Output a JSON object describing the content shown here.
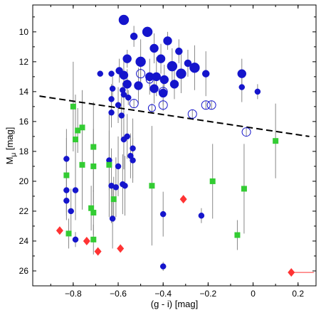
{
  "chart_data": {
    "type": "scatter",
    "title": "",
    "xlabel": "(g - i) [mag]",
    "ylabel": "M",
    "ylabel_subscript": "μ",
    "ylabel_suffix": " [mag]",
    "xlim": [
      -0.98,
      0.28
    ],
    "ylim": [
      27.0,
      8.2
    ],
    "y_inverted": true,
    "grid": false,
    "x_ticks": [
      -0.8,
      -0.6,
      -0.4,
      -0.2,
      0,
      0.2
    ],
    "x_tick_labels": [
      "−0.8",
      "−0.6",
      "−0.4",
      "−0.2",
      "0",
      "0.2"
    ],
    "y_ticks": [
      10,
      12,
      14,
      16,
      18,
      20,
      22,
      24,
      26
    ],
    "y_tick_labels": [
      "10",
      "12",
      "14",
      "16",
      "18",
      "20",
      "22",
      "24",
      "26"
    ],
    "colors": {
      "blue": "#1515cc",
      "green": "#33cc33",
      "red": "#ff3333",
      "errorbar": "#888888",
      "dashed_line": "#000000"
    },
    "dashed_line": {
      "x": [
        -0.95,
        0.25
      ],
      "y": [
        14.3,
        17.0
      ]
    },
    "series": [
      {
        "marker": "circle-filled",
        "color": "blue",
        "points": [
          {
            "x": -0.575,
            "y": 9.2,
            "size": 7,
            "err": 0
          },
          {
            "x": -0.53,
            "y": 10.3,
            "size": 5,
            "err": 0.7
          },
          {
            "x": -0.47,
            "y": 10.0,
            "size": 7,
            "err": 0
          },
          {
            "x": -0.44,
            "y": 11.1,
            "size": 6,
            "err": 1.0
          },
          {
            "x": -0.38,
            "y": 10.6,
            "size": 6,
            "err": 0.6
          },
          {
            "x": -0.33,
            "y": 11.3,
            "size": 5,
            "err": 0.8
          },
          {
            "x": -0.56,
            "y": 11.8,
            "size": 6,
            "err": 0.6
          },
          {
            "x": -0.5,
            "y": 12.0,
            "size": 7,
            "err": 1.5
          },
          {
            "x": -0.41,
            "y": 11.8,
            "size": 6,
            "err": 1.0
          },
          {
            "x": -0.36,
            "y": 12.3,
            "size": 7,
            "err": 1.2
          },
          {
            "x": -0.32,
            "y": 12.8,
            "size": 7,
            "err": 1.3
          },
          {
            "x": -0.29,
            "y": 12.1,
            "size": 5,
            "err": 0.9
          },
          {
            "x": -0.26,
            "y": 12.4,
            "size": 7,
            "err": 1.5
          },
          {
            "x": -0.21,
            "y": 12.8,
            "size": 5,
            "err": 1.5
          },
          {
            "x": -0.595,
            "y": 12.6,
            "size": 5,
            "err": 0.8
          },
          {
            "x": -0.575,
            "y": 12.9,
            "size": 6,
            "err": 1.0
          },
          {
            "x": -0.46,
            "y": 13.0,
            "size": 6,
            "err": 1.2
          },
          {
            "x": -0.43,
            "y": 13.0,
            "size": 6,
            "err": 1.3
          },
          {
            "x": -0.395,
            "y": 13.2,
            "size": 6,
            "err": 1.0
          },
          {
            "x": -0.35,
            "y": 13.5,
            "size": 6,
            "err": 1.0
          },
          {
            "x": -0.56,
            "y": 13.5,
            "size": 6,
            "err": 1.0
          },
          {
            "x": -0.51,
            "y": 13.6,
            "size": 6,
            "err": 1.2
          },
          {
            "x": -0.44,
            "y": 13.8,
            "size": 6,
            "err": 1.0
          },
          {
            "x": -0.4,
            "y": 14.1,
            "size": 6,
            "err": 0.8
          },
          {
            "x": -0.05,
            "y": 12.8,
            "size": 6,
            "err": 1.0
          },
          {
            "x": -0.05,
            "y": 13.7,
            "size": 4,
            "err": 1.0
          },
          {
            "x": 0.02,
            "y": 14.0,
            "size": 4,
            "err": 0.5
          },
          {
            "x": -0.63,
            "y": 12.8,
            "size": 4,
            "err": 0
          },
          {
            "x": -0.68,
            "y": 12.8,
            "size": 4,
            "err": 0
          },
          {
            "x": -0.58,
            "y": 13.9,
            "size": 4,
            "err": 0.5
          },
          {
            "x": -0.625,
            "y": 13.8,
            "size": 4,
            "err": 0.8
          },
          {
            "x": -0.63,
            "y": 14.5,
            "size": 4,
            "err": 1.0
          },
          {
            "x": -0.575,
            "y": 14.2,
            "size": 4,
            "err": 1.0
          },
          {
            "x": -0.555,
            "y": 14.4,
            "size": 4,
            "err": 0.5
          },
          {
            "x": -0.63,
            "y": 15.4,
            "size": 4,
            "err": 1.0
          },
          {
            "x": -0.6,
            "y": 14.9,
            "size": 4,
            "err": 1.2
          },
          {
            "x": -0.585,
            "y": 15.6,
            "size": 4,
            "err": 1.5
          },
          {
            "x": -0.575,
            "y": 17.2,
            "size": 4,
            "err": 2.0
          },
          {
            "x": -0.56,
            "y": 17.0,
            "size": 4,
            "err": 1.5
          },
          {
            "x": -0.535,
            "y": 17.8,
            "size": 4,
            "err": 2.0
          },
          {
            "x": -0.545,
            "y": 18.3,
            "size": 4,
            "err": 1.5
          },
          {
            "x": -0.535,
            "y": 18.6,
            "size": 4,
            "err": 1.5
          },
          {
            "x": -0.64,
            "y": 18.6,
            "size": 4,
            "err": 2.0
          },
          {
            "x": -0.6,
            "y": 19.0,
            "size": 4,
            "err": 2.0
          },
          {
            "x": -0.83,
            "y": 18.5,
            "size": 4,
            "err": 2.0
          },
          {
            "x": -0.83,
            "y": 20.6,
            "size": 4,
            "err": 2.0
          },
          {
            "x": -0.83,
            "y": 21.3,
            "size": 4,
            "err": 1.0
          },
          {
            "x": -0.79,
            "y": 20.6,
            "size": 4,
            "err": 2.0
          },
          {
            "x": -0.81,
            "y": 22.0,
            "size": 4,
            "err": 1.5
          },
          {
            "x": -0.63,
            "y": 20.3,
            "size": 4,
            "err": 2.5
          },
          {
            "x": -0.61,
            "y": 20.4,
            "size": 4,
            "err": 2.0
          },
          {
            "x": -0.625,
            "y": 22.5,
            "size": 4,
            "err": 2.0
          },
          {
            "x": -0.58,
            "y": 20.2,
            "size": 4,
            "err": 2.0
          },
          {
            "x": -0.57,
            "y": 20.3,
            "size": 4,
            "err": 2.0
          },
          {
            "x": -0.4,
            "y": 22.2,
            "size": 4,
            "err": 1.5
          },
          {
            "x": -0.23,
            "y": 22.3,
            "size": 4,
            "err": 0.5
          },
          {
            "x": -0.79,
            "y": 23.9,
            "size": 4,
            "err": 0.5
          },
          {
            "x": -0.4,
            "y": 25.7,
            "size": 4,
            "err": 0.3
          }
        ]
      },
      {
        "marker": "circle-open",
        "color": "blue",
        "points": [
          {
            "x": -0.5,
            "y": 12.8,
            "size": 6,
            "err": 0.5
          },
          {
            "x": -0.46,
            "y": 13.2,
            "size": 5,
            "err": 0.4
          },
          {
            "x": -0.4,
            "y": 14.0,
            "size": 6,
            "err": 0.4
          },
          {
            "x": -0.53,
            "y": 14.8,
            "size": 6,
            "err": 0.3
          },
          {
            "x": -0.4,
            "y": 14.9,
            "size": 6,
            "err": 0.4
          },
          {
            "x": -0.45,
            "y": 15.1,
            "size": 5,
            "err": 0.3
          },
          {
            "x": -0.27,
            "y": 15.5,
            "size": 6,
            "err": 0.3
          },
          {
            "x": -0.21,
            "y": 14.9,
            "size": 6,
            "err": 0.3
          },
          {
            "x": -0.185,
            "y": 14.9,
            "size": 6,
            "err": 0.3
          },
          {
            "x": -0.03,
            "y": 16.7,
            "size": 6,
            "err": 0.3
          }
        ]
      },
      {
        "marker": "square",
        "color": "green",
        "points": [
          {
            "x": -0.8,
            "y": 15.0,
            "size": 4,
            "err": 3.0
          },
          {
            "x": -0.78,
            "y": 16.6,
            "size": 4,
            "err": 1.5
          },
          {
            "x": -0.76,
            "y": 16.4,
            "size": 4,
            "err": 2.5
          },
          {
            "x": -0.79,
            "y": 17.2,
            "size": 4,
            "err": 3.0
          },
          {
            "x": -0.71,
            "y": 17.7,
            "size": 4,
            "err": 3.0
          },
          {
            "x": -0.76,
            "y": 18.9,
            "size": 4,
            "err": 3.0
          },
          {
            "x": -0.71,
            "y": 19.0,
            "size": 4,
            "err": 2.5
          },
          {
            "x": -0.83,
            "y": 19.6,
            "size": 4,
            "err": 2.5
          },
          {
            "x": -0.64,
            "y": 18.9,
            "size": 4,
            "err": 3.5
          },
          {
            "x": -0.62,
            "y": 21.2,
            "size": 4,
            "err": 1.5
          },
          {
            "x": -0.72,
            "y": 21.8,
            "size": 4,
            "err": 1.5
          },
          {
            "x": -0.71,
            "y": 22.1,
            "size": 4,
            "err": 1.5
          },
          {
            "x": -0.82,
            "y": 23.5,
            "size": 4,
            "err": 1.0
          },
          {
            "x": -0.71,
            "y": 23.9,
            "size": 4,
            "err": 1.0
          },
          {
            "x": -0.45,
            "y": 20.3,
            "size": 4,
            "err": 4.0
          },
          {
            "x": -0.18,
            "y": 20.0,
            "size": 4,
            "err": 2.5
          },
          {
            "x": -0.04,
            "y": 20.5,
            "size": 4,
            "err": 3.0
          },
          {
            "x": -0.07,
            "y": 23.6,
            "size": 4,
            "err": 1.0
          },
          {
            "x": 0.1,
            "y": 17.3,
            "size": 4,
            "err": 2.5
          }
        ]
      },
      {
        "marker": "diamond",
        "color": "red",
        "points": [
          {
            "x": -0.86,
            "y": 23.3,
            "size": 5,
            "err": 0
          },
          {
            "x": -0.74,
            "y": 24.0,
            "size": 5,
            "err": 0
          },
          {
            "x": -0.69,
            "y": 24.7,
            "size": 5,
            "err": 0
          },
          {
            "x": -0.59,
            "y": 24.5,
            "size": 5,
            "err": 0
          },
          {
            "x": -0.31,
            "y": 21.2,
            "size": 5,
            "err": 0
          },
          {
            "x": 0.17,
            "y": 26.1,
            "size": 5,
            "err": 0,
            "xerr_right": 0.1
          }
        ]
      }
    ]
  }
}
